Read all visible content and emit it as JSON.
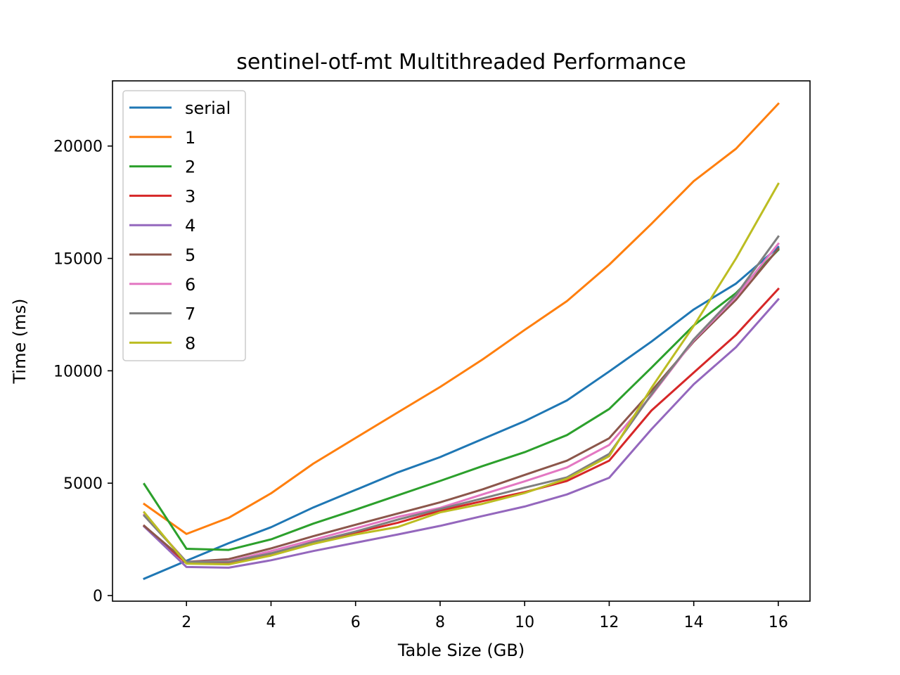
{
  "chart_data": {
    "type": "line",
    "title": "sentinel-otf-mt Multithreaded Performance",
    "xlabel": "Table Size (GB)",
    "ylabel": "Time (ms)",
    "xlim": [
      0.25,
      16.75
    ],
    "ylim": [
      -250,
      22900
    ],
    "xticks": [
      2,
      4,
      6,
      8,
      10,
      12,
      14,
      16
    ],
    "yticks": [
      0,
      5000,
      10000,
      15000,
      20000
    ],
    "grid": false,
    "legend": "top-left",
    "x": [
      1,
      2,
      3,
      4,
      5,
      6,
      7,
      8,
      9,
      10,
      11,
      12,
      13,
      14,
      15,
      16
    ],
    "series": [
      {
        "name": "serial",
        "color": "#1f77b4",
        "values": [
          750,
          1550,
          2330,
          3040,
          3920,
          4700,
          5480,
          6160,
          6960,
          7760,
          8680,
          9970,
          11300,
          12730,
          13880,
          15500
        ]
      },
      {
        "name": "1",
        "color": "#ff7f0e",
        "values": [
          4070,
          2740,
          3460,
          4550,
          5870,
          7010,
          8150,
          9280,
          10500,
          11820,
          13100,
          14720,
          16540,
          18440,
          19880,
          21880
        ]
      },
      {
        "name": "2",
        "color": "#2ca02c",
        "values": [
          4960,
          2080,
          2030,
          2500,
          3200,
          3820,
          4460,
          5100,
          5760,
          6380,
          7140,
          8300,
          10140,
          12020,
          13460,
          15380
        ]
      },
      {
        "name": "3",
        "color": "#d62728",
        "values": [
          3100,
          1430,
          1450,
          1840,
          2390,
          2800,
          3240,
          3780,
          4200,
          4600,
          5100,
          6000,
          8230,
          9920,
          11600,
          13640
        ]
      },
      {
        "name": "4",
        "color": "#9467bd",
        "values": [
          3070,
          1270,
          1240,
          1570,
          1980,
          2350,
          2720,
          3100,
          3540,
          3960,
          4500,
          5240,
          7400,
          9400,
          11050,
          13180
        ]
      },
      {
        "name": "5",
        "color": "#8c564b",
        "values": [
          3100,
          1500,
          1620,
          2100,
          2640,
          3150,
          3650,
          4150,
          4720,
          5370,
          6000,
          7000,
          9100,
          11300,
          13160,
          15430
        ]
      },
      {
        "name": "6",
        "color": "#e377c2",
        "values": [
          3600,
          1500,
          1520,
          1980,
          2480,
          2990,
          3500,
          3900,
          4500,
          5080,
          5700,
          6700,
          8900,
          11360,
          13290,
          15650
        ]
      },
      {
        "name": "7",
        "color": "#7f7f7f",
        "values": [
          3550,
          1500,
          1500,
          1880,
          2380,
          2850,
          3380,
          3850,
          4320,
          4800,
          5260,
          6300,
          8950,
          11400,
          13380,
          15970
        ]
      },
      {
        "name": "8",
        "color": "#bcbd22",
        "values": [
          3700,
          1420,
          1390,
          1780,
          2300,
          2720,
          3050,
          3700,
          4080,
          4560,
          5200,
          6200,
          9240,
          12000,
          15000,
          18320
        ]
      }
    ]
  }
}
